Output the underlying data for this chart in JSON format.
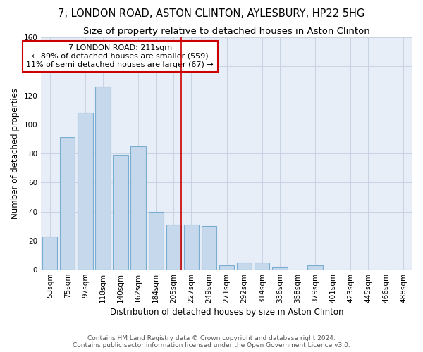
{
  "title1": "7, LONDON ROAD, ASTON CLINTON, AYLESBURY, HP22 5HG",
  "title2": "Size of property relative to detached houses in Aston Clinton",
  "xlabel": "Distribution of detached houses by size in Aston Clinton",
  "ylabel": "Number of detached properties",
  "categories": [
    "53sqm",
    "75sqm",
    "97sqm",
    "118sqm",
    "140sqm",
    "162sqm",
    "184sqm",
    "205sqm",
    "227sqm",
    "249sqm",
    "271sqm",
    "292sqm",
    "314sqm",
    "336sqm",
    "358sqm",
    "379sqm",
    "401sqm",
    "423sqm",
    "445sqm",
    "466sqm",
    "488sqm"
  ],
  "values": [
    23,
    91,
    108,
    126,
    79,
    85,
    40,
    31,
    31,
    30,
    3,
    5,
    5,
    2,
    0,
    3,
    0,
    0,
    0,
    0,
    0
  ],
  "bar_color": "#c5d8ec",
  "bar_edge_color": "#7aaed0",
  "highlight_bar_index": 7,
  "highlight_line_color": "#cc0000",
  "annotation_text": "7 LONDON ROAD: 211sqm\n← 89% of detached houses are smaller (559)\n11% of semi-detached houses are larger (67) →",
  "annotation_box_color": "#ffffff",
  "annotation_box_edge_color": "#cc0000",
  "ylim": [
    0,
    160
  ],
  "yticks": [
    0,
    20,
    40,
    60,
    80,
    100,
    120,
    140,
    160
  ],
  "grid_color": "#c8d4e4",
  "background_color": "#e8eef8",
  "footer_text": "Contains HM Land Registry data © Crown copyright and database right 2024.\nContains public sector information licensed under the Open Government Licence v3.0.",
  "title1_fontsize": 10.5,
  "title2_fontsize": 9.5,
  "xlabel_fontsize": 8.5,
  "ylabel_fontsize": 8.5,
  "tick_fontsize": 7.5,
  "annotation_fontsize": 8,
  "footer_fontsize": 6.5
}
